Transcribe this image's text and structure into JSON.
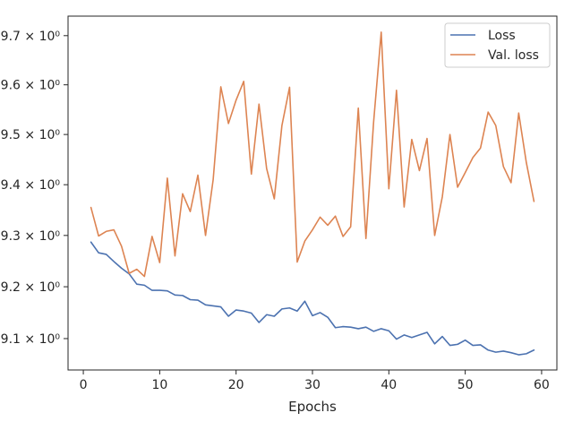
{
  "chart_data": {
    "type": "line",
    "title": "",
    "xlabel": "Epochs",
    "ylabel": "",
    "xlim": [
      -2,
      62
    ],
    "ylim": [
      9.04,
      9.74
    ],
    "yscale": "log",
    "grid": false,
    "legend_position": "top-right",
    "x_ticks": [
      0,
      10,
      20,
      30,
      40,
      50,
      60
    ],
    "x_tick_labels": [
      "0",
      "10",
      "20",
      "30",
      "40",
      "50",
      "60"
    ],
    "y_ticks": [
      9.1,
      9.2,
      9.3,
      9.4,
      9.5,
      9.6,
      9.7
    ],
    "y_tick_labels": [
      "9.1 × 10⁰",
      "9.2 × 10⁰",
      "9.3 × 10⁰",
      "9.4 × 10⁰",
      "9.5 × 10⁰",
      "9.6 × 10⁰",
      "9.7 × 10⁰"
    ],
    "x": [
      1,
      2,
      3,
      4,
      5,
      6,
      7,
      8,
      9,
      10,
      11,
      12,
      13,
      14,
      15,
      16,
      17,
      18,
      19,
      20,
      21,
      22,
      23,
      24,
      25,
      26,
      27,
      28,
      29,
      30,
      31,
      32,
      33,
      34,
      35,
      36,
      37,
      38,
      39,
      40,
      41,
      42,
      43,
      44,
      45,
      46,
      47,
      48,
      49,
      50,
      51,
      52,
      53,
      54,
      55,
      56,
      57,
      58,
      59
    ],
    "series": [
      {
        "name": "Loss",
        "color": "#4c72b0",
        "values": [
          9.287,
          9.266,
          9.263,
          9.249,
          9.236,
          9.225,
          9.205,
          9.203,
          9.193,
          9.193,
          9.192,
          9.184,
          9.183,
          9.175,
          9.174,
          9.165,
          9.163,
          9.161,
          9.143,
          9.155,
          9.153,
          9.149,
          9.131,
          9.146,
          9.143,
          9.157,
          9.159,
          9.153,
          9.172,
          9.144,
          9.15,
          9.141,
          9.121,
          9.123,
          9.122,
          9.119,
          9.122,
          9.114,
          9.119,
          9.115,
          9.099,
          9.107,
          9.102,
          9.107,
          9.112,
          9.09,
          9.104,
          9.087,
          9.089,
          9.097,
          9.087,
          9.088,
          9.078,
          9.074,
          9.076,
          9.073,
          9.069,
          9.071,
          9.078
        ]
      },
      {
        "name": "Val. loss",
        "color": "#dd8452",
        "values": [
          9.355,
          9.299,
          9.308,
          9.311,
          9.279,
          9.226,
          9.234,
          9.22,
          9.298,
          9.247,
          9.413,
          9.26,
          9.382,
          9.347,
          9.419,
          9.3,
          9.41,
          9.596,
          9.522,
          9.569,
          9.607,
          9.421,
          9.561,
          9.432,
          9.372,
          9.518,
          9.595,
          9.248,
          9.289,
          9.311,
          9.336,
          9.32,
          9.338,
          9.298,
          9.317,
          9.553,
          9.294,
          9.524,
          9.707,
          9.392,
          9.589,
          9.356,
          9.49,
          9.428,
          9.492,
          9.3,
          9.376,
          9.5,
          9.395,
          9.424,
          9.454,
          9.473,
          9.545,
          9.518,
          9.436,
          9.404,
          9.543,
          9.444,
          9.367
        ]
      }
    ]
  }
}
